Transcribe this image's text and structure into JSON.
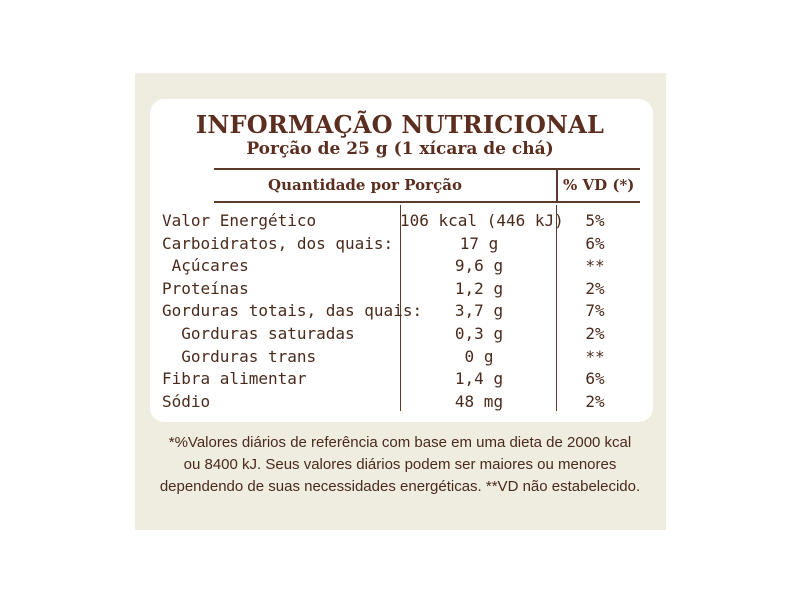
{
  "label": {
    "title": "INFORMAÇÃO NUTRICIONAL",
    "serving": "Porção de 25 g (1 xícara de chá)",
    "columns": {
      "quantity": "Quantidade por Porção",
      "daily_value": "% VD (*)"
    },
    "rows": [
      {
        "name": "Valor Energético",
        "qty": "106 kcal (446 kJ)",
        "vd": "5%"
      },
      {
        "name": "Carboidratos, dos quais:",
        "qty": "17 g",
        "vd": "6%"
      },
      {
        "name": " Açúcares",
        "qty": "9,6 g",
        "vd": "**"
      },
      {
        "name": "Proteínas",
        "qty": "1,2 g",
        "vd": "2%"
      },
      {
        "name": "Gorduras totais, das quais:",
        "qty": "3,7 g",
        "vd": "7%"
      },
      {
        "name": "  Gorduras saturadas",
        "qty": "0,3 g",
        "vd": "2%"
      },
      {
        "name": "  Gorduras trans",
        "qty": "0 g",
        "vd": "**"
      },
      {
        "name": "Fibra alimentar",
        "qty": "1,4 g",
        "vd": "6%"
      },
      {
        "name": "Sódio",
        "qty": "48 mg",
        "vd": "2%"
      }
    ],
    "footnote": [
      "*%Valores diários de referência com base em uma dieta de 2000 kcal",
      "ou 8400 kJ. Seus valores diários podem ser maiores ou menores",
      "dependendo de suas necessidades energéticas. **VD não estabelecido."
    ]
  }
}
